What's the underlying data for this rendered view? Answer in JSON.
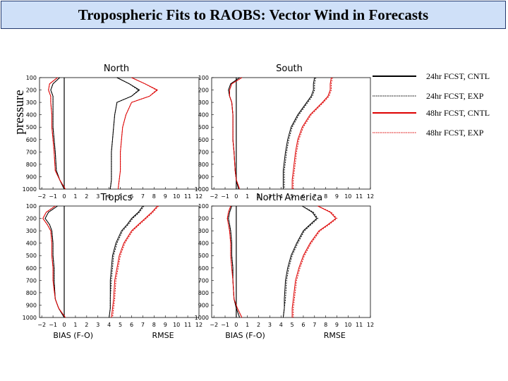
{
  "title": "Tropospheric Fits to RAOBS: Vector Wind in Forecasts",
  "ylabel": "pressure",
  "legend": [
    {
      "label": "24hr FCST, CNTL",
      "color": "#000000",
      "style": "solid"
    },
    {
      "label": "24hr FCST, EXP",
      "color": "#000000",
      "style": "dotted"
    },
    {
      "label": "48hr FCST, CNTL",
      "color": "#dd0000",
      "style": "solid"
    },
    {
      "label": "48hr FCST, EXP",
      "color": "#dd0000",
      "style": "dotted"
    }
  ],
  "chart_data": [
    {
      "type": "line",
      "title": "North",
      "xlabel_left": "",
      "xlabel_right": "",
      "yticks": [
        100,
        200,
        300,
        400,
        500,
        600,
        700,
        800,
        900,
        1000
      ],
      "xticks": [
        -2,
        -1,
        0,
        1,
        2,
        3,
        4,
        5,
        6,
        7,
        8,
        9,
        10,
        11,
        12
      ],
      "xlim": [
        -2.2,
        12
      ],
      "ylim": [
        1000,
        100
      ],
      "pressure": [
        100,
        150,
        200,
        250,
        300,
        400,
        500,
        600,
        700,
        850,
        925,
        1000
      ],
      "series": [
        {
          "name": "24hr FCST, CNTL",
          "bias": [
            -0.4,
            -1.0,
            -1.2,
            -1.0,
            -1.0,
            -1.0,
            -1.0,
            -0.9,
            -0.8,
            -0.7,
            -0.4,
            0.0
          ],
          "rmse": [
            4.7,
            5.8,
            6.7,
            6.0,
            4.7,
            4.5,
            4.4,
            4.3,
            4.2,
            4.2,
            4.2,
            4.1
          ]
        },
        {
          "name": "24hr FCST, EXP",
          "bias": [
            -0.4,
            -1.0,
            -1.2,
            -1.0,
            -1.0,
            -1.0,
            -1.0,
            -0.9,
            -0.8,
            -0.7,
            -0.4,
            0.0
          ],
          "rmse": [
            4.7,
            5.8,
            6.6,
            6.0,
            4.7,
            4.5,
            4.4,
            4.3,
            4.2,
            4.2,
            4.2,
            4.1
          ]
        },
        {
          "name": "48hr FCST, CNTL",
          "bias": [
            -0.6,
            -1.3,
            -1.4,
            -1.2,
            -1.2,
            -1.1,
            -1.1,
            -1.0,
            -0.9,
            -0.8,
            -0.4,
            0.1
          ],
          "rmse": [
            6.0,
            7.2,
            8.3,
            7.6,
            6.0,
            5.5,
            5.2,
            5.1,
            5.0,
            5.0,
            4.9,
            4.8
          ]
        },
        {
          "name": "48hr FCST, EXP",
          "bias": [
            -0.6,
            -1.3,
            -1.4,
            -1.2,
            -1.2,
            -1.1,
            -1.1,
            -1.0,
            -0.9,
            -0.8,
            -0.4,
            0.1
          ],
          "rmse": [
            6.0,
            7.2,
            8.2,
            7.6,
            6.0,
            5.5,
            5.2,
            5.1,
            5.0,
            5.0,
            4.9,
            4.8
          ]
        }
      ]
    },
    {
      "type": "line",
      "title": "South",
      "xlabel_left": "",
      "xlabel_right": "",
      "yticks": [
        100,
        200,
        300,
        400,
        500,
        600,
        700,
        800,
        900,
        1000
      ],
      "xticks": [
        -2,
        -1,
        0,
        1,
        2,
        3,
        4,
        5,
        6,
        7,
        8,
        9,
        10,
        11,
        12
      ],
      "xlim": [
        -2.2,
        12
      ],
      "ylim": [
        1000,
        100
      ],
      "pressure": [
        100,
        150,
        200,
        250,
        300,
        400,
        500,
        600,
        700,
        850,
        925,
        1000
      ],
      "series": [
        {
          "name": "24hr FCST, CNTL",
          "bias": [
            0.3,
            -0.5,
            -0.7,
            -0.6,
            -0.4,
            -0.3,
            -0.3,
            -0.3,
            -0.2,
            -0.1,
            0.0,
            0.2
          ],
          "rmse": [
            7.0,
            6.9,
            6.9,
            6.7,
            6.3,
            5.5,
            4.9,
            4.6,
            4.4,
            4.2,
            4.2,
            4.2
          ]
        },
        {
          "name": "24hr FCST, EXP",
          "bias": [
            0.3,
            -0.5,
            -0.7,
            -0.6,
            -0.4,
            -0.3,
            -0.3,
            -0.3,
            -0.2,
            -0.1,
            0.0,
            0.2
          ],
          "rmse": [
            7.1,
            7.0,
            7.0,
            6.8,
            6.4,
            5.6,
            5.0,
            4.7,
            4.5,
            4.3,
            4.3,
            4.3
          ]
        },
        {
          "name": "48hr FCST, CNTL",
          "bias": [
            0.5,
            -0.4,
            -0.6,
            -0.6,
            -0.4,
            -0.3,
            -0.3,
            -0.3,
            -0.2,
            -0.1,
            0.0,
            0.3
          ],
          "rmse": [
            8.5,
            8.4,
            8.4,
            8.2,
            7.7,
            6.6,
            5.9,
            5.5,
            5.3,
            5.1,
            5.0,
            5.0
          ]
        },
        {
          "name": "48hr FCST, EXP",
          "bias": [
            0.5,
            -0.4,
            -0.6,
            -0.6,
            -0.4,
            -0.3,
            -0.3,
            -0.3,
            -0.2,
            -0.1,
            0.0,
            0.3
          ],
          "rmse": [
            8.6,
            8.5,
            8.5,
            8.3,
            7.8,
            6.7,
            6.0,
            5.6,
            5.4,
            5.2,
            5.1,
            5.1
          ]
        }
      ]
    },
    {
      "type": "line",
      "title": "Tropics",
      "xlabel_left": "BIAS (F-O)",
      "xlabel_right": "RMSE",
      "yticks": [
        100,
        200,
        300,
        400,
        500,
        600,
        700,
        800,
        900,
        1000
      ],
      "xticks": [
        -2,
        -1,
        0,
        1,
        2,
        3,
        4,
        5,
        6,
        7,
        8,
        9,
        10,
        11,
        12
      ],
      "xlim": [
        -2.2,
        12
      ],
      "ylim": [
        1000,
        100
      ],
      "pressure": [
        100,
        150,
        200,
        250,
        300,
        400,
        500,
        600,
        700,
        850,
        925,
        1000
      ],
      "series": [
        {
          "name": "24hr FCST, CNTL",
          "bias": [
            -0.6,
            -1.4,
            -1.7,
            -1.3,
            -1.1,
            -1.0,
            -1.0,
            -0.9,
            -0.9,
            -0.8,
            -0.5,
            0.0
          ],
          "rmse": [
            7.0,
            6.6,
            6.0,
            5.6,
            5.1,
            4.6,
            4.3,
            4.2,
            4.1,
            4.1,
            4.1,
            4.0
          ]
        },
        {
          "name": "24hr FCST, EXP",
          "bias": [
            -0.6,
            -1.4,
            -1.7,
            -1.3,
            -1.1,
            -1.0,
            -1.0,
            -0.9,
            -0.9,
            -0.8,
            -0.5,
            0.0
          ],
          "rmse": [
            7.1,
            6.7,
            6.1,
            5.7,
            5.2,
            4.7,
            4.4,
            4.3,
            4.2,
            4.1,
            4.1,
            4.0
          ]
        },
        {
          "name": "48hr FCST, CNTL",
          "bias": [
            -0.8,
            -1.6,
            -1.9,
            -1.5,
            -1.2,
            -1.1,
            -1.1,
            -1.0,
            -1.0,
            -0.8,
            -0.5,
            0.1
          ],
          "rmse": [
            8.3,
            7.8,
            7.2,
            6.6,
            6.0,
            5.3,
            4.9,
            4.7,
            4.5,
            4.4,
            4.3,
            4.2
          ]
        },
        {
          "name": "48hr FCST, EXP",
          "bias": [
            -0.8,
            -1.6,
            -1.9,
            -1.5,
            -1.2,
            -1.1,
            -1.1,
            -1.0,
            -1.0,
            -0.8,
            -0.5,
            0.1
          ],
          "rmse": [
            8.4,
            7.9,
            7.3,
            6.7,
            6.1,
            5.4,
            5.0,
            4.8,
            4.6,
            4.5,
            4.4,
            4.3
          ]
        }
      ]
    },
    {
      "type": "line",
      "title": "North America",
      "xlabel_left": "BIAS (F-O)",
      "xlabel_right": "RMSE",
      "yticks": [
        100,
        200,
        300,
        400,
        500,
        600,
        700,
        800,
        900,
        1000
      ],
      "xticks": [
        -2,
        -1,
        0,
        1,
        2,
        3,
        4,
        5,
        6,
        7,
        8,
        9,
        10,
        11,
        12
      ],
      "xlim": [
        -2.2,
        12
      ],
      "ylim": [
        1000,
        100
      ],
      "pressure": [
        100,
        150,
        200,
        250,
        300,
        400,
        500,
        600,
        700,
        850,
        925,
        1000
      ],
      "series": [
        {
          "name": "24hr FCST, CNTL",
          "bias": [
            -0.4,
            -0.6,
            -0.7,
            -0.6,
            -0.5,
            -0.4,
            -0.4,
            -0.3,
            -0.3,
            -0.2,
            0.0,
            0.3
          ],
          "rmse": [
            5.9,
            6.8,
            7.2,
            6.6,
            6.0,
            5.4,
            4.9,
            4.6,
            4.4,
            4.3,
            4.3,
            4.2
          ]
        },
        {
          "name": "24hr FCST, EXP",
          "bias": [
            -0.4,
            -0.6,
            -0.7,
            -0.6,
            -0.5,
            -0.4,
            -0.4,
            -0.3,
            -0.3,
            -0.2,
            0.0,
            0.3
          ],
          "rmse": [
            5.9,
            6.9,
            7.3,
            6.7,
            6.1,
            5.5,
            5.0,
            4.7,
            4.5,
            4.4,
            4.3,
            4.2
          ]
        },
        {
          "name": "48hr FCST, CNTL",
          "bias": [
            -0.5,
            -0.7,
            -0.8,
            -0.7,
            -0.6,
            -0.5,
            -0.5,
            -0.4,
            -0.3,
            -0.2,
            0.1,
            0.5
          ],
          "rmse": [
            7.3,
            8.4,
            8.9,
            8.2,
            7.4,
            6.6,
            6.0,
            5.6,
            5.3,
            5.1,
            5.0,
            5.0
          ]
        },
        {
          "name": "48hr FCST, EXP",
          "bias": [
            -0.5,
            -0.7,
            -0.8,
            -0.7,
            -0.6,
            -0.5,
            -0.5,
            -0.4,
            -0.3,
            -0.2,
            0.1,
            0.5
          ],
          "rmse": [
            7.3,
            8.5,
            9.0,
            8.3,
            7.5,
            6.7,
            6.1,
            5.7,
            5.4,
            5.2,
            5.1,
            5.1
          ]
        }
      ]
    }
  ]
}
